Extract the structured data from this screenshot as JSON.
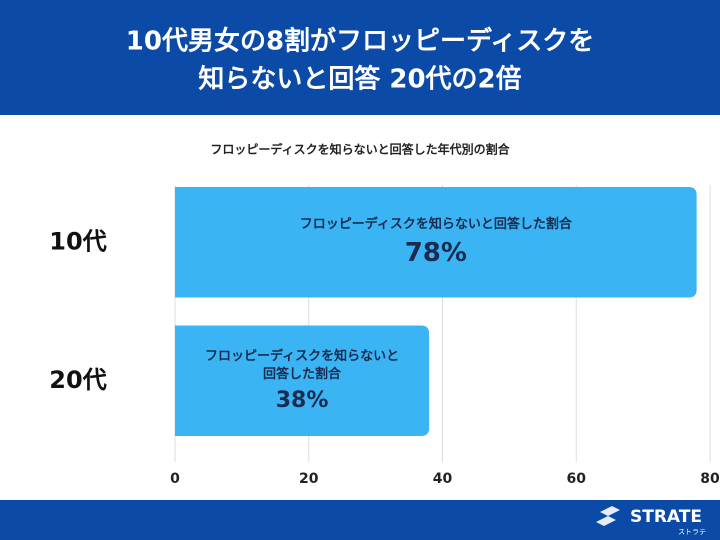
{
  "chart_data": {
    "type": "hbar",
    "title": [
      "10代男女の8割がフロッピーディスクを",
      "知らないと回答 20代の2倍"
    ],
    "subtitle": "フロッピーディスクを知らないと回答した年代別の割合",
    "categories": [
      "10代",
      "20代"
    ],
    "series": [
      {
        "name": "フロッピーディスクを知らないと回答した割合",
        "color": "#3ab4f2",
        "values": [
          78,
          38
        ],
        "value_labels": [
          "78%",
          "38%"
        ]
      }
    ],
    "xlim": [
      0,
      80
    ],
    "xticks": [
      0,
      20,
      40,
      60,
      80
    ],
    "grid": true
  },
  "footer": {
    "logo": "STRATE",
    "logo_sub": "ストラテ"
  }
}
